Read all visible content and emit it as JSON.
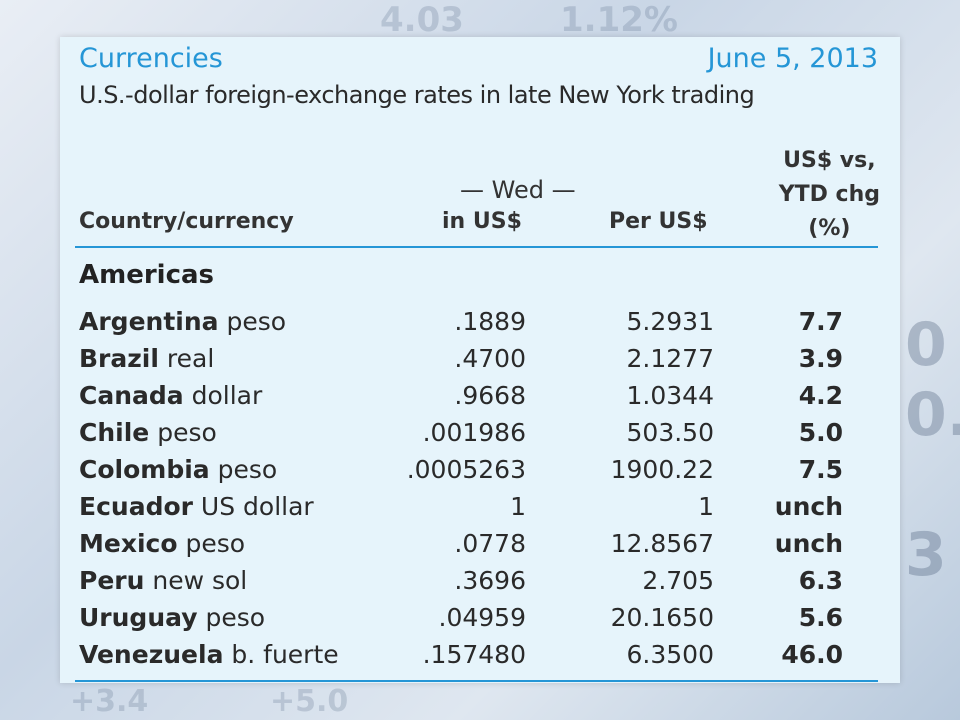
{
  "header": {
    "title": "Currencies",
    "date": "June 5, 2013",
    "subtitle": "U.S.-dollar foreign-exchange rates in late New York trading"
  },
  "columns": {
    "country": "Country/currency",
    "wed": "—  Wed  —",
    "in_us": "in US$",
    "per_us": "Per US$",
    "ytd_line1": "US$ vs,",
    "ytd_line2": "YTD chg",
    "ytd_line3": "(%)"
  },
  "region": "Americas",
  "rows": [
    {
      "country": "Argentina",
      "currency": "peso",
      "in_us": ".1889",
      "per_us": "5.2931",
      "chg": "7.7"
    },
    {
      "country": "Brazil",
      "currency": "real",
      "in_us": ".4700",
      "per_us": "2.1277",
      "chg": "3.9"
    },
    {
      "country": "Canada",
      "currency": "dollar",
      "in_us": ".9668",
      "per_us": "1.0344",
      "chg": "4.2"
    },
    {
      "country": "Chile",
      "currency": "peso",
      "in_us": ".001986",
      "per_us": "503.50",
      "chg": "5.0"
    },
    {
      "country": "Colombia",
      "currency": "peso",
      "in_us": ".0005263",
      "per_us": "1900.22",
      "chg": "7.5"
    },
    {
      "country": "Ecuador",
      "currency": "US dollar",
      "in_us": "1",
      "per_us": "1",
      "chg": "unch"
    },
    {
      "country": "Mexico",
      "currency": "peso",
      "in_us": ".0778",
      "per_us": "12.8567",
      "chg": "unch"
    },
    {
      "country": "Peru",
      "currency": "new sol",
      "in_us": ".3696",
      "per_us": "2.705",
      "chg": "6.3"
    },
    {
      "country": "Uruguay",
      "currency": "peso",
      "in_us": ".04959",
      "per_us": "20.1650",
      "chg": "5.6"
    },
    {
      "country": "Venezuela",
      "currency": "b. fuerte",
      "in_us": ".157480",
      "per_us": "6.3500",
      "chg": "46.0"
    }
  ],
  "colors": {
    "accent": "#2596d6",
    "panel": "#e6f4fb"
  }
}
